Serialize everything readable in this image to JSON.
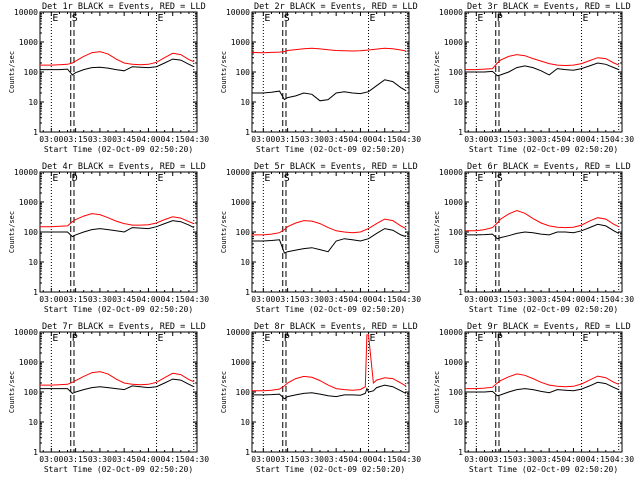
{
  "figure": {
    "time_axis_label": "Start Time (02-Oct-09 02:50:20)",
    "y_axis_label": "Counts/sec",
    "x_ticks": [
      "03:00",
      "03:15",
      "03:30",
      "03:45",
      "04:00",
      "04:15",
      "04:30"
    ],
    "y_ticks": [
      "1",
      "10",
      "100",
      "1000",
      "10000"
    ]
  },
  "colors": {
    "events": "#000000",
    "lld": "#ff0000",
    "axes": "#000000"
  },
  "chart_data": [
    {
      "type": "line",
      "title": "Det 1r BLACK = Events, RED = LLD",
      "xlabel": "Start Time (02-Oct-09 02:50:20)",
      "ylabel": "Counts/sec",
      "yscale": "log",
      "ylim": [
        1,
        10000
      ],
      "xlim": [
        "02:53",
        "04:30"
      ],
      "grid": false,
      "x": [
        "02:53",
        "03:00",
        "03:05",
        "03:10",
        "03:13",
        "03:15",
        "03:20",
        "03:25",
        "03:30",
        "03:35",
        "03:40",
        "03:45",
        "03:50",
        "03:55",
        "04:00",
        "04:05",
        "04:10",
        "04:15",
        "04:20",
        "04:25",
        "04:28"
      ],
      "series": [
        {
          "name": "LLD",
          "color": "red",
          "values": [
            170,
            170,
            175,
            180,
            200,
            230,
            330,
            440,
            480,
            400,
            270,
            200,
            180,
            175,
            180,
            210,
            300,
            420,
            380,
            260,
            220
          ]
        },
        {
          "name": "Events",
          "color": "black",
          "values": [
            120,
            120,
            120,
            125,
            80,
            95,
            120,
            140,
            145,
            135,
            120,
            110,
            150,
            145,
            140,
            150,
            200,
            270,
            250,
            180,
            150
          ]
        }
      ],
      "markers": {
        "dotted": [
          "03:00",
          "04:05",
          "04:28"
        ],
        "dashed": [
          "03:12",
          "03:14"
        ],
        "labels": [
          "E",
          "S",
          "E"
        ]
      }
    },
    {
      "type": "line",
      "title": "Det 2r BLACK = Events, RED = LLD",
      "xlabel": "Start Time (02-Oct-09 02:50:20)",
      "ylabel": "Counts/sec",
      "yscale": "log",
      "ylim": [
        1,
        10000
      ],
      "xlim": [
        "02:53",
        "04:30"
      ],
      "grid": false,
      "x": [
        "02:53",
        "03:00",
        "03:05",
        "03:10",
        "03:13",
        "03:15",
        "03:20",
        "03:25",
        "03:30",
        "03:35",
        "03:40",
        "03:45",
        "03:50",
        "03:55",
        "04:00",
        "04:05",
        "04:10",
        "04:15",
        "04:20",
        "04:25",
        "04:28"
      ],
      "series": [
        {
          "name": "LLD",
          "color": "red",
          "values": [
            450,
            440,
            450,
            460,
            480,
            520,
            560,
            600,
            620,
            590,
            550,
            520,
            510,
            500,
            510,
            540,
            580,
            620,
            600,
            540,
            500
          ]
        },
        {
          "name": "Events",
          "color": "black",
          "values": [
            20,
            20,
            21,
            23,
            12,
            14,
            16,
            20,
            18,
            11,
            12,
            20,
            22,
            20,
            19,
            22,
            35,
            55,
            48,
            30,
            24
          ]
        }
      ],
      "markers": {
        "dotted": [
          "03:00",
          "04:05",
          "04:28"
        ],
        "dashed": [
          "03:12",
          "03:14"
        ],
        "labels": [
          "E",
          "S",
          "E"
        ]
      }
    },
    {
      "type": "line",
      "title": "Det 3r BLACK = Events, RED = LLD",
      "xlabel": "Start Time (02-Oct-09 02:50:20)",
      "ylabel": "Counts/sec",
      "yscale": "log",
      "ylim": [
        1,
        10000
      ],
      "xlim": [
        "02:53",
        "04:30"
      ],
      "grid": false,
      "x": [
        "02:53",
        "03:00",
        "03:05",
        "03:10",
        "03:13",
        "03:15",
        "03:20",
        "03:25",
        "03:30",
        "03:35",
        "03:40",
        "03:45",
        "03:50",
        "03:55",
        "04:00",
        "04:05",
        "04:10",
        "04:15",
        "04:20",
        "04:25",
        "04:28"
      ],
      "series": [
        {
          "name": "LLD",
          "color": "red",
          "values": [
            120,
            120,
            125,
            130,
            200,
            250,
            330,
            380,
            350,
            280,
            230,
            190,
            170,
            165,
            170,
            190,
            240,
            300,
            280,
            200,
            170
          ]
        },
        {
          "name": "Events",
          "color": "black",
          "values": [
            100,
            100,
            100,
            105,
            75,
            80,
            100,
            140,
            160,
            140,
            110,
            80,
            130,
            120,
            115,
            130,
            160,
            200,
            180,
            140,
            120
          ]
        }
      ],
      "markers": {
        "dotted": [
          "03:00",
          "04:05",
          "04:28"
        ],
        "dashed": [
          "03:12",
          "03:14"
        ],
        "labels": [
          "E",
          "P",
          "E"
        ]
      }
    },
    {
      "type": "line",
      "title": "Det 4r BLACK = Events, RED = LLD",
      "xlabel": "Start Time (02-Oct-09 02:50:20)",
      "ylabel": "Counts/sec",
      "yscale": "log",
      "ylim": [
        1,
        10000
      ],
      "xlim": [
        "02:53",
        "04:30"
      ],
      "grid": false,
      "x": [
        "02:53",
        "03:00",
        "03:05",
        "03:10",
        "03:13",
        "03:15",
        "03:20",
        "03:25",
        "03:30",
        "03:35",
        "03:40",
        "03:45",
        "03:50",
        "03:55",
        "04:00",
        "04:05",
        "04:10",
        "04:15",
        "04:20",
        "04:25",
        "04:28"
      ],
      "series": [
        {
          "name": "LLD",
          "color": "red",
          "values": [
            150,
            150,
            155,
            160,
            220,
            260,
            340,
            410,
            380,
            300,
            230,
            190,
            170,
            170,
            175,
            200,
            260,
            320,
            290,
            220,
            190
          ]
        },
        {
          "name": "Events",
          "color": "black",
          "values": [
            100,
            100,
            100,
            100,
            70,
            80,
            100,
            120,
            130,
            120,
            110,
            100,
            140,
            135,
            130,
            150,
            190,
            240,
            220,
            170,
            140
          ]
        }
      ],
      "markers": {
        "dotted": [
          "03:00",
          "04:05",
          "04:28"
        ],
        "dashed": [
          "03:12",
          "03:14"
        ],
        "labels": [
          "E",
          "D",
          "E"
        ]
      }
    },
    {
      "type": "line",
      "title": "Det 5r BLACK = Events, RED = LLD",
      "xlabel": "Start Time (02-Oct-09 02:50:20)",
      "ylabel": "Counts/sec",
      "yscale": "log",
      "ylim": [
        1,
        10000
      ],
      "xlim": [
        "02:53",
        "04:30"
      ],
      "grid": false,
      "x": [
        "02:53",
        "03:00",
        "03:05",
        "03:10",
        "03:13",
        "03:15",
        "03:20",
        "03:25",
        "03:30",
        "03:35",
        "03:40",
        "03:45",
        "03:50",
        "03:55",
        "04:00",
        "04:05",
        "04:10",
        "04:15",
        "04:20",
        "04:25",
        "04:28"
      ],
      "series": [
        {
          "name": "LLD",
          "color": "red",
          "values": [
            80,
            80,
            85,
            95,
            120,
            150,
            200,
            240,
            230,
            190,
            140,
            110,
            100,
            95,
            100,
            130,
            190,
            270,
            240,
            160,
            130
          ]
        },
        {
          "name": "Events",
          "color": "black",
          "values": [
            50,
            50,
            52,
            55,
            20,
            22,
            25,
            28,
            30,
            26,
            22,
            50,
            60,
            55,
            50,
            60,
            90,
            130,
            115,
            80,
            70
          ]
        }
      ],
      "markers": {
        "dotted": [
          "03:00",
          "04:05",
          "04:28"
        ],
        "dashed": [
          "03:12",
          "03:14"
        ],
        "labels": [
          "E",
          "S",
          "E"
        ]
      }
    },
    {
      "type": "line",
      "title": "Det 6r BLACK = Events, RED = LLD",
      "xlabel": "Start Time (02-Oct-09 02:50:20)",
      "ylabel": "Counts/sec",
      "yscale": "log",
      "ylim": [
        1,
        10000
      ],
      "xlim": [
        "02:53",
        "04:30"
      ],
      "grid": false,
      "x": [
        "02:53",
        "03:00",
        "03:05",
        "03:10",
        "03:13",
        "03:15",
        "03:20",
        "03:25",
        "03:30",
        "03:35",
        "03:40",
        "03:45",
        "03:50",
        "03:55",
        "04:00",
        "04:05",
        "04:10",
        "04:15",
        "04:20",
        "04:25",
        "04:28"
      ],
      "series": [
        {
          "name": "LLD",
          "color": "red",
          "values": [
            110,
            110,
            120,
            140,
            200,
            270,
            400,
            520,
            420,
            280,
            200,
            160,
            145,
            140,
            145,
            170,
            230,
            300,
            270,
            180,
            150
          ]
        },
        {
          "name": "Events",
          "color": "black",
          "values": [
            80,
            80,
            82,
            85,
            60,
            65,
            75,
            90,
            100,
            95,
            85,
            80,
            100,
            100,
            95,
            110,
            140,
            180,
            160,
            110,
            90
          ]
        }
      ],
      "markers": {
        "dotted": [
          "03:00",
          "04:05",
          "04:28"
        ],
        "dashed": [
          "03:12",
          "03:14"
        ],
        "labels": [
          "E",
          "S",
          "E"
        ]
      }
    },
    {
      "type": "line",
      "title": "Det 7r BLACK = Events, RED = LLD",
      "xlabel": "Start Time (02-Oct-09 02:50:20)",
      "ylabel": "Counts/sec",
      "yscale": "log",
      "ylim": [
        1,
        10000
      ],
      "xlim": [
        "02:53",
        "04:30"
      ],
      "grid": false,
      "x": [
        "02:53",
        "03:00",
        "03:05",
        "03:10",
        "03:13",
        "03:15",
        "03:20",
        "03:25",
        "03:30",
        "03:35",
        "03:40",
        "03:45",
        "03:50",
        "03:55",
        "04:00",
        "04:05",
        "04:10",
        "04:15",
        "04:20",
        "04:25",
        "04:28"
      ],
      "series": [
        {
          "name": "LLD",
          "color": "red",
          "values": [
            170,
            170,
            175,
            180,
            210,
            240,
            330,
            440,
            480,
            400,
            270,
            200,
            180,
            175,
            180,
            210,
            300,
            420,
            380,
            260,
            220
          ]
        },
        {
          "name": "Events",
          "color": "black",
          "values": [
            130,
            130,
            130,
            130,
            90,
            100,
            120,
            140,
            150,
            140,
            130,
            120,
            160,
            150,
            140,
            150,
            200,
            270,
            250,
            180,
            150
          ]
        }
      ],
      "markers": {
        "dotted": [
          "03:00",
          "04:05",
          "04:28"
        ],
        "dashed": [
          "03:12",
          "03:14"
        ],
        "labels": [
          "E",
          "P",
          "E"
        ]
      }
    },
    {
      "type": "line",
      "title": "Det 8r BLACK = Events, RED = LLD",
      "xlabel": "Start Time (02-Oct-09 02:50:20)",
      "ylabel": "Counts/sec",
      "yscale": "log",
      "ylim": [
        1,
        10000
      ],
      "xlim": [
        "02:53",
        "04:30"
      ],
      "grid": false,
      "x": [
        "02:53",
        "03:00",
        "03:05",
        "03:10",
        "03:13",
        "03:15",
        "03:20",
        "03:25",
        "03:30",
        "03:35",
        "03:40",
        "03:45",
        "03:50",
        "03:55",
        "04:00",
        "04:03",
        "04:04",
        "04:05",
        "04:08",
        "04:10",
        "04:15",
        "04:20",
        "04:25",
        "04:28"
      ],
      "series": [
        {
          "name": "LLD",
          "color": "red",
          "values": [
            110,
            110,
            115,
            125,
            160,
            200,
            280,
            330,
            310,
            240,
            170,
            130,
            120,
            115,
            120,
            150,
            8000,
            8000,
            200,
            250,
            300,
            280,
            200,
            160
          ]
        },
        {
          "name": "Events",
          "color": "black",
          "values": [
            80,
            80,
            82,
            85,
            60,
            70,
            80,
            90,
            95,
            85,
            75,
            70,
            80,
            80,
            78,
            90,
            130,
            100,
            110,
            140,
            170,
            150,
            110,
            90
          ]
        }
      ],
      "markers": {
        "dotted": [
          "03:00",
          "04:05",
          "04:28"
        ],
        "dashed": [
          "03:12",
          "03:14"
        ],
        "labels": [
          "E",
          "P",
          "E"
        ]
      }
    },
    {
      "type": "line",
      "title": "Det 9r BLACK = Events, RED = LLD",
      "xlabel": "Start Time (02-Oct-09 02:50:20)",
      "ylabel": "Counts/sec",
      "yscale": "log",
      "ylim": [
        1,
        10000
      ],
      "xlim": [
        "02:53",
        "04:30"
      ],
      "grid": false,
      "x": [
        "02:53",
        "03:00",
        "03:05",
        "03:10",
        "03:13",
        "03:15",
        "03:20",
        "03:25",
        "03:30",
        "03:35",
        "03:40",
        "03:45",
        "03:50",
        "03:55",
        "04:00",
        "04:05",
        "04:10",
        "04:15",
        "04:20",
        "04:25",
        "04:28"
      ],
      "series": [
        {
          "name": "LLD",
          "color": "red",
          "values": [
            130,
            130,
            135,
            145,
            200,
            240,
            320,
            400,
            360,
            280,
            210,
            170,
            155,
            150,
            155,
            185,
            250,
            340,
            300,
            210,
            180
          ]
        },
        {
          "name": "Events",
          "color": "black",
          "values": [
            100,
            100,
            100,
            105,
            75,
            80,
            100,
            120,
            130,
            120,
            105,
            95,
            120,
            115,
            110,
            125,
            160,
            210,
            190,
            140,
            120
          ]
        }
      ],
      "markers": {
        "dotted": [
          "03:00",
          "04:05",
          "04:28"
        ],
        "dashed": [
          "03:12",
          "03:14"
        ],
        "labels": [
          "E",
          "P",
          "E"
        ]
      }
    }
  ]
}
